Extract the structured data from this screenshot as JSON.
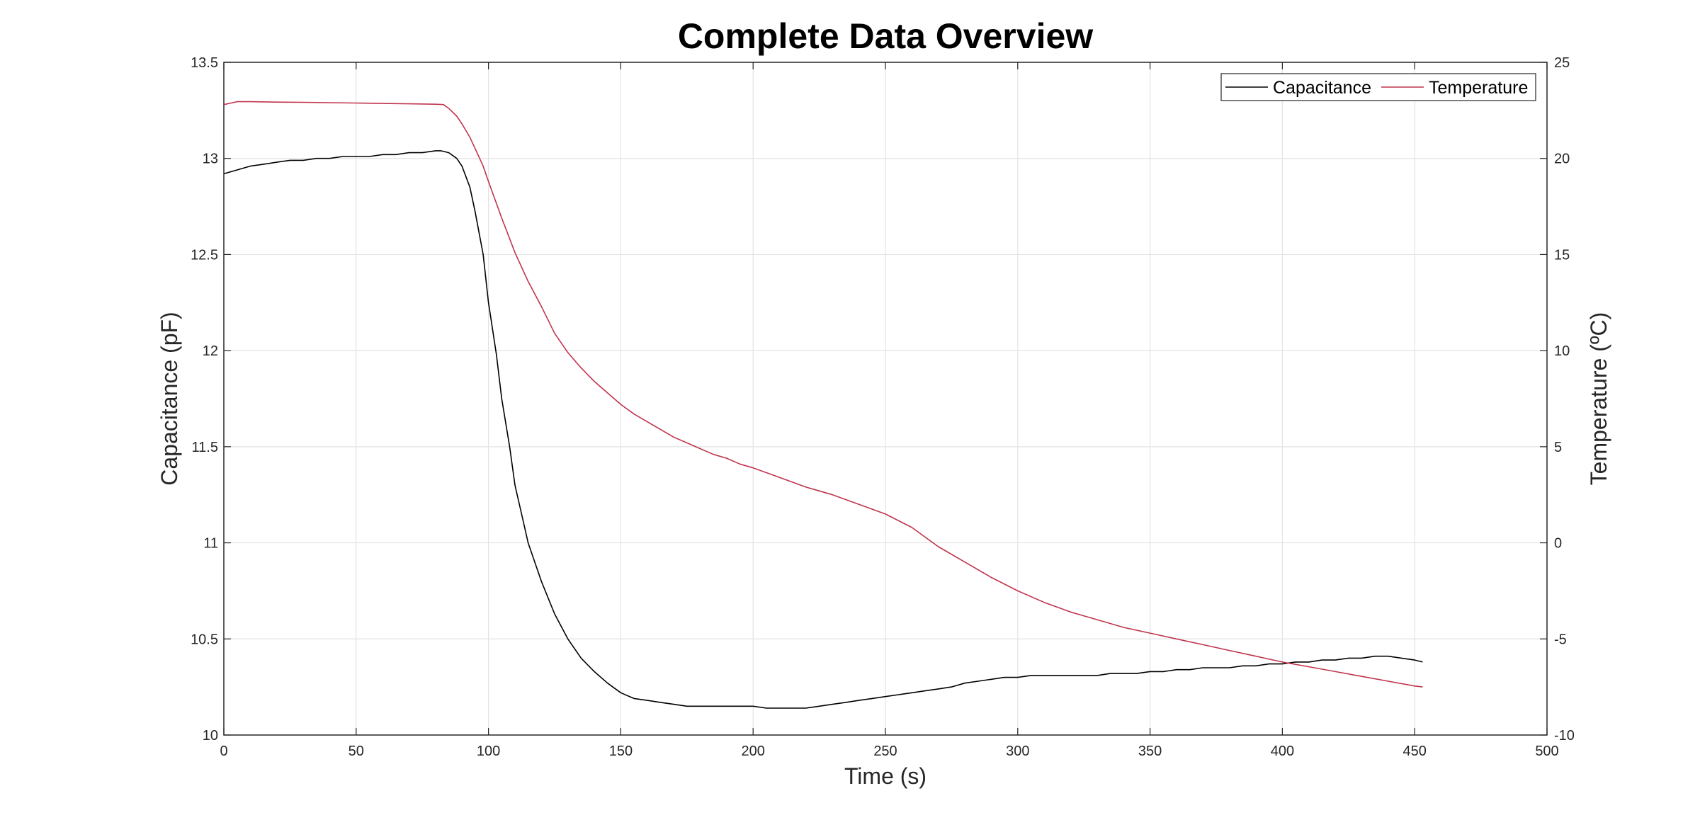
{
  "chart_data": {
    "type": "line",
    "title": "Complete Data Overview",
    "xlabel": "Time (s)",
    "ylabel_left": "Capacitance (pF)",
    "ylabel_right": "Temperature (ºC)",
    "xlim": [
      0,
      500
    ],
    "ylim_left": [
      10,
      13.5
    ],
    "ylim_right": [
      -10,
      25
    ],
    "xticks": [
      0,
      50,
      100,
      150,
      200,
      250,
      300,
      350,
      400,
      450,
      500
    ],
    "yticks_left": [
      10,
      10.5,
      11,
      11.5,
      12,
      12.5,
      13,
      13.5
    ],
    "yticks_right": [
      -10,
      -5,
      0,
      5,
      10,
      15,
      20,
      25
    ],
    "grid": true,
    "legend_position": "top-right",
    "series": [
      {
        "name": "Capacitance",
        "axis": "left",
        "color": "#000000",
        "x": [
          0,
          5,
          10,
          15,
          20,
          25,
          30,
          35,
          40,
          45,
          50,
          55,
          60,
          65,
          70,
          75,
          80,
          82,
          85,
          88,
          90,
          93,
          95,
          98,
          100,
          103,
          105,
          108,
          110,
          113,
          115,
          118,
          120,
          125,
          130,
          135,
          140,
          145,
          150,
          155,
          160,
          165,
          170,
          175,
          180,
          185,
          190,
          195,
          200,
          205,
          210,
          215,
          220,
          225,
          230,
          235,
          240,
          245,
          250,
          255,
          260,
          265,
          270,
          275,
          280,
          285,
          290,
          295,
          300,
          305,
          310,
          315,
          320,
          325,
          330,
          335,
          340,
          345,
          350,
          355,
          360,
          365,
          370,
          375,
          380,
          385,
          390,
          395,
          400,
          405,
          410,
          415,
          420,
          425,
          430,
          435,
          440,
          445,
          450,
          453
        ],
        "values": [
          12.92,
          12.94,
          12.96,
          12.97,
          12.98,
          12.99,
          12.99,
          13.0,
          13.0,
          13.01,
          13.01,
          13.01,
          13.02,
          13.02,
          13.03,
          13.03,
          13.04,
          13.04,
          13.03,
          13.0,
          12.96,
          12.85,
          12.72,
          12.5,
          12.25,
          11.98,
          11.75,
          11.5,
          11.3,
          11.12,
          11.0,
          10.88,
          10.8,
          10.63,
          10.5,
          10.4,
          10.33,
          10.27,
          10.22,
          10.19,
          10.18,
          10.17,
          10.16,
          10.15,
          10.15,
          10.15,
          10.15,
          10.15,
          10.15,
          10.14,
          10.14,
          10.14,
          10.14,
          10.15,
          10.16,
          10.17,
          10.18,
          10.19,
          10.2,
          10.21,
          10.22,
          10.23,
          10.24,
          10.25,
          10.27,
          10.28,
          10.29,
          10.3,
          10.3,
          10.31,
          10.31,
          10.31,
          10.31,
          10.31,
          10.31,
          10.32,
          10.32,
          10.32,
          10.33,
          10.33,
          10.34,
          10.34,
          10.35,
          10.35,
          10.35,
          10.36,
          10.36,
          10.37,
          10.37,
          10.38,
          10.38,
          10.39,
          10.39,
          10.4,
          10.4,
          10.41,
          10.41,
          10.4,
          10.39,
          10.38
        ]
      },
      {
        "name": "Temperature",
        "axis": "right",
        "color": "#C0344D",
        "x": [
          0,
          5,
          10,
          20,
          30,
          40,
          50,
          60,
          70,
          80,
          83,
          85,
          88,
          90,
          93,
          95,
          98,
          100,
          105,
          110,
          115,
          120,
          125,
          130,
          135,
          140,
          145,
          150,
          155,
          160,
          165,
          170,
          175,
          180,
          185,
          190,
          195,
          200,
          210,
          220,
          230,
          240,
          250,
          260,
          270,
          280,
          290,
          300,
          310,
          320,
          330,
          340,
          350,
          360,
          370,
          380,
          390,
          400,
          410,
          420,
          430,
          440,
          450,
          453
        ],
        "values": [
          22.8,
          22.95,
          22.95,
          22.93,
          22.92,
          22.9,
          22.88,
          22.86,
          22.84,
          22.82,
          22.8,
          22.6,
          22.2,
          21.8,
          21.1,
          20.5,
          19.6,
          18.8,
          16.9,
          15.1,
          13.6,
          12.3,
          10.9,
          9.9,
          9.1,
          8.4,
          7.8,
          7.2,
          6.7,
          6.3,
          5.9,
          5.5,
          5.2,
          4.9,
          4.6,
          4.4,
          4.1,
          3.9,
          3.4,
          2.9,
          2.5,
          2.0,
          1.5,
          0.8,
          -0.2,
          -1.0,
          -1.8,
          -2.5,
          -3.1,
          -3.6,
          -4.0,
          -4.4,
          -4.7,
          -5.0,
          -5.3,
          -5.6,
          -5.9,
          -6.2,
          -6.45,
          -6.7,
          -6.95,
          -7.2,
          -7.45,
          -7.5
        ]
      }
    ]
  }
}
